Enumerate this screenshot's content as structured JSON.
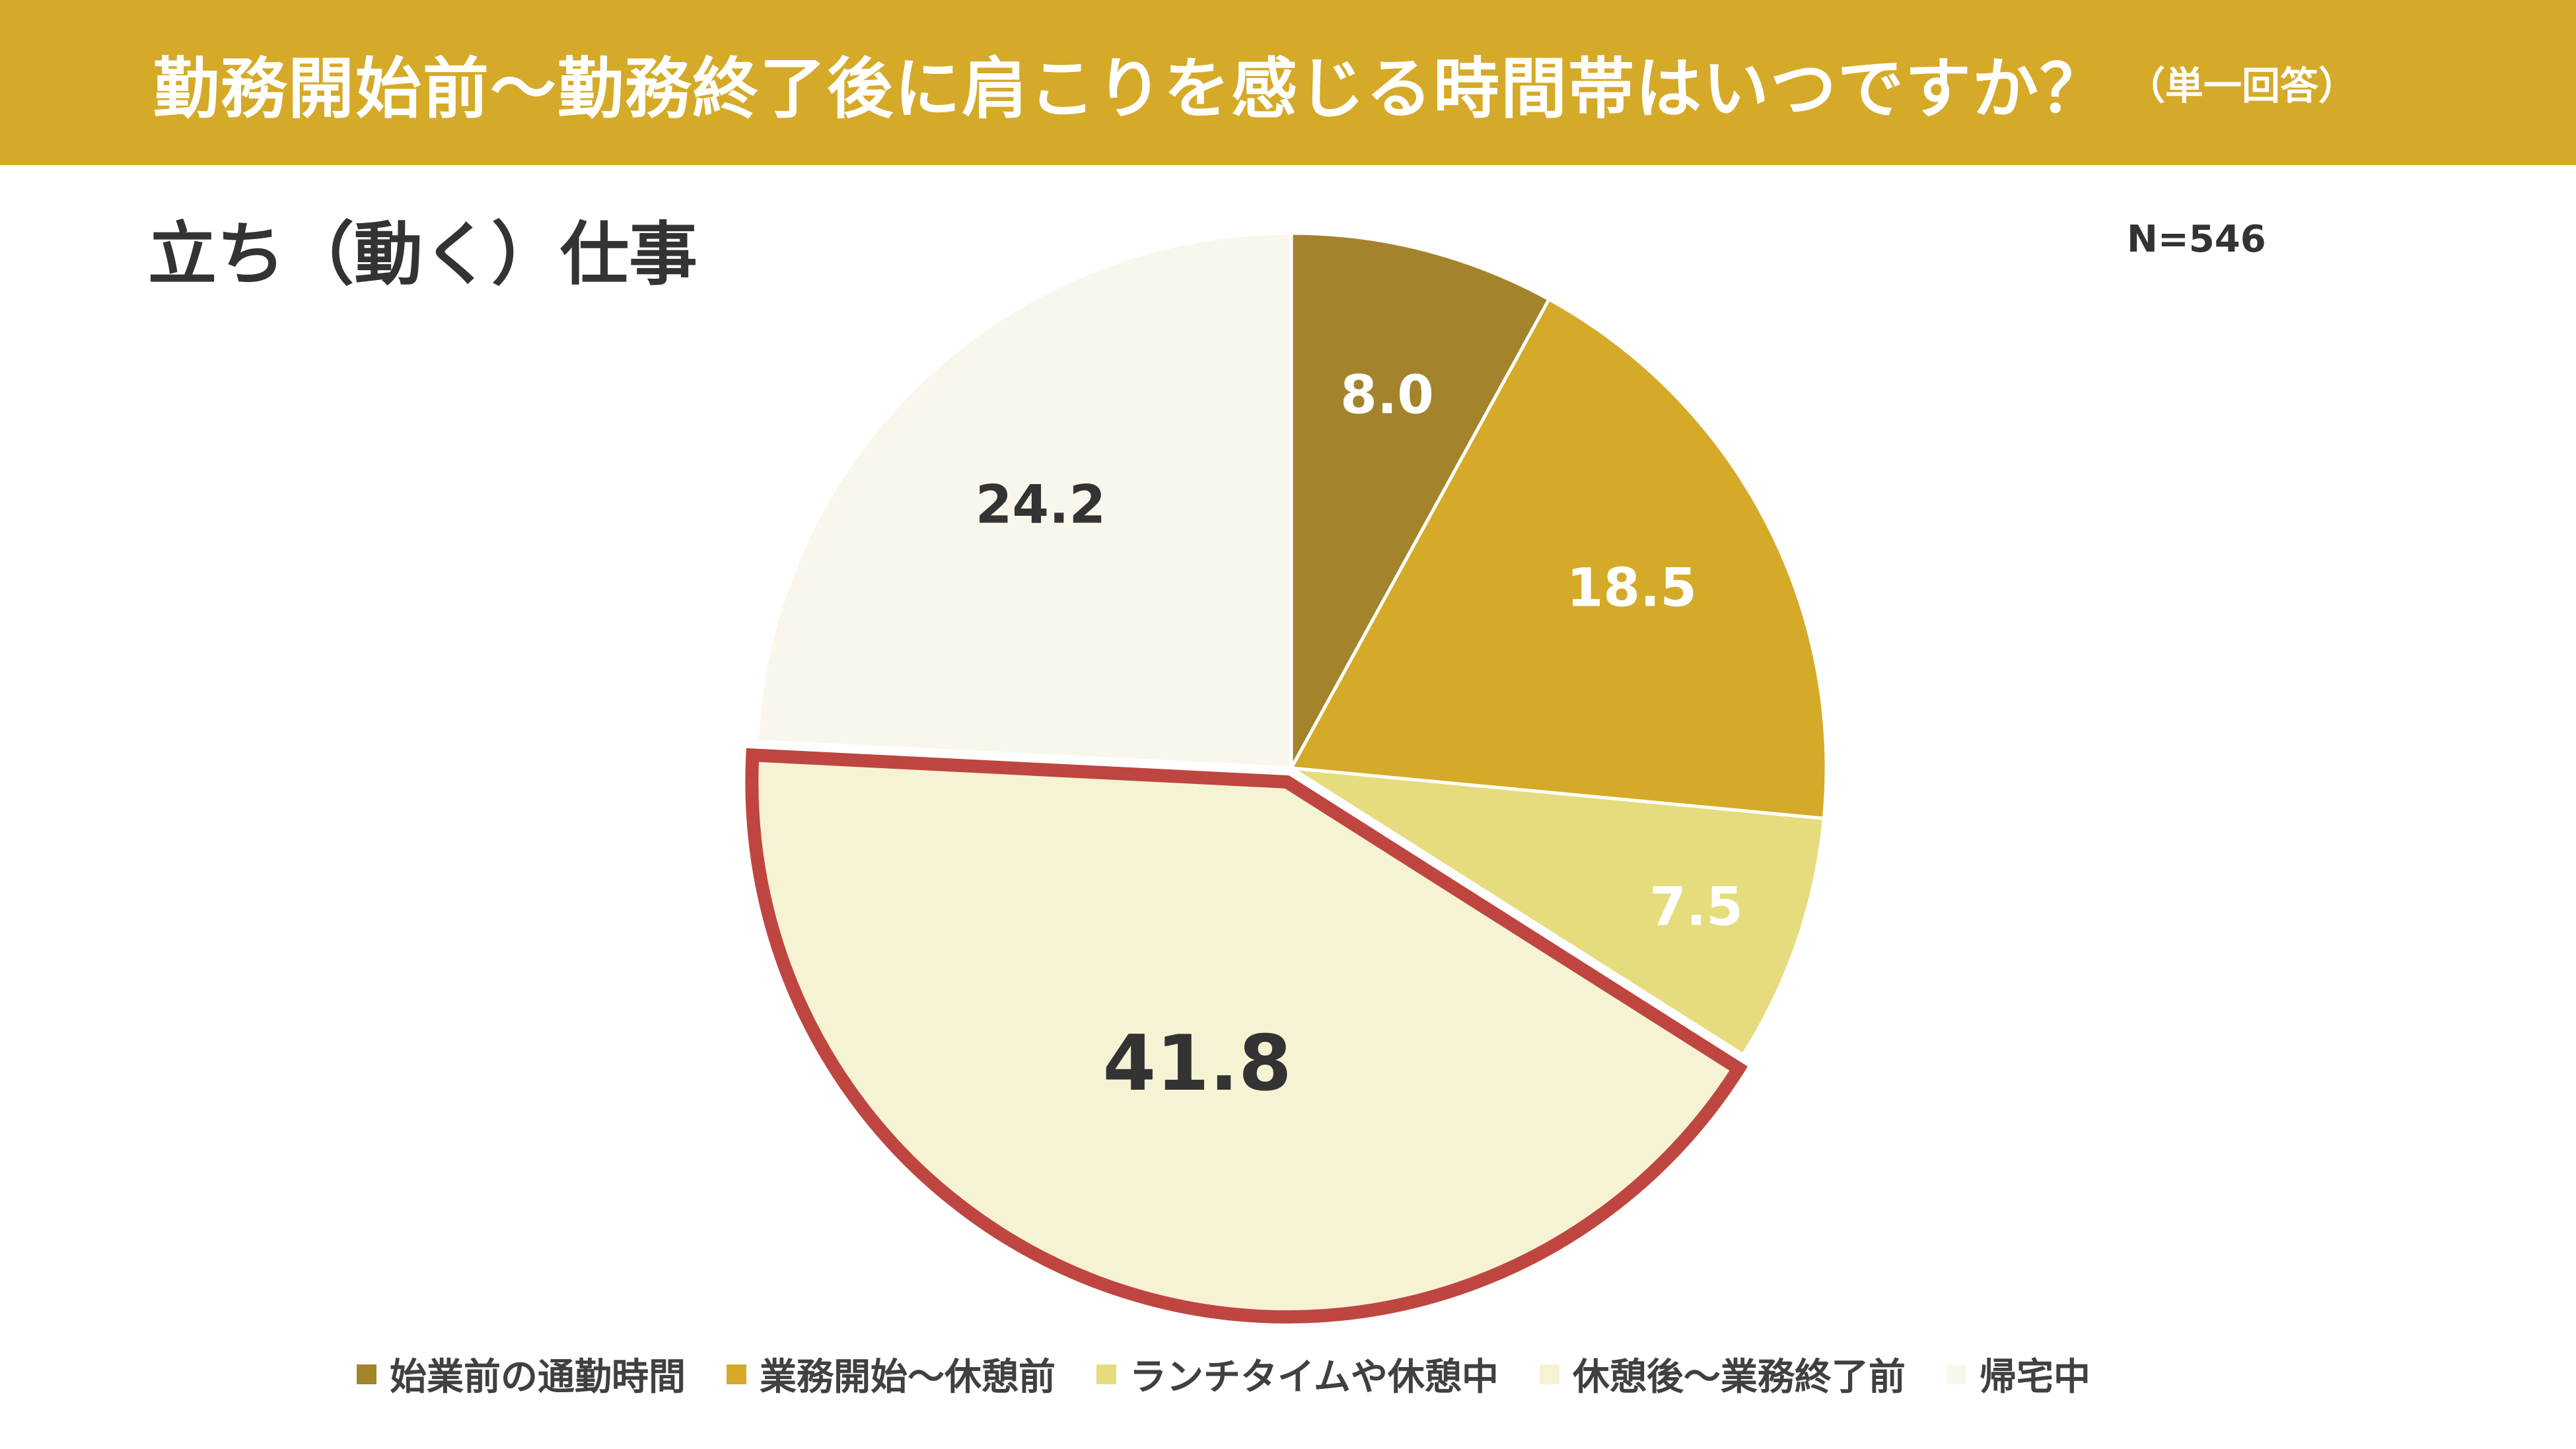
{
  "header": {
    "title": "勤務開始前〜勤務終了後に肩こりを感じる時間帯はいつですか？",
    "note": "（単一回答）"
  },
  "subtitle": "立ち（動く）仕事",
  "sample_size": "N=546",
  "chart_data": {
    "type": "pie",
    "title": "勤務開始前〜勤務終了後に肩こりを感じる時間帯はいつですか？",
    "categories": [
      "始業前の通勤時間",
      "業務開始〜休憩前",
      "ランチタイムや休憩中",
      "休憩後〜業務終了前",
      "帰宅中"
    ],
    "values": [
      8.0,
      18.5,
      7.5,
      41.8,
      24.2
    ],
    "labels": [
      "8.0",
      "18.5",
      "7.5",
      "41.8",
      "24.2"
    ],
    "colors": [
      "#a3832c",
      "#d5aa28",
      "#e6dc7e",
      "#f6f3d4",
      "#f9f7eb"
    ],
    "label_colors": [
      "#ffffff",
      "#ffffff",
      "#ffffff",
      "#333333",
      "#333333"
    ],
    "highlight": "休憩後〜業務終了前",
    "highlight_color": "#bf4640",
    "legend_position": "bottom",
    "start_angle": "top, clockwise"
  }
}
